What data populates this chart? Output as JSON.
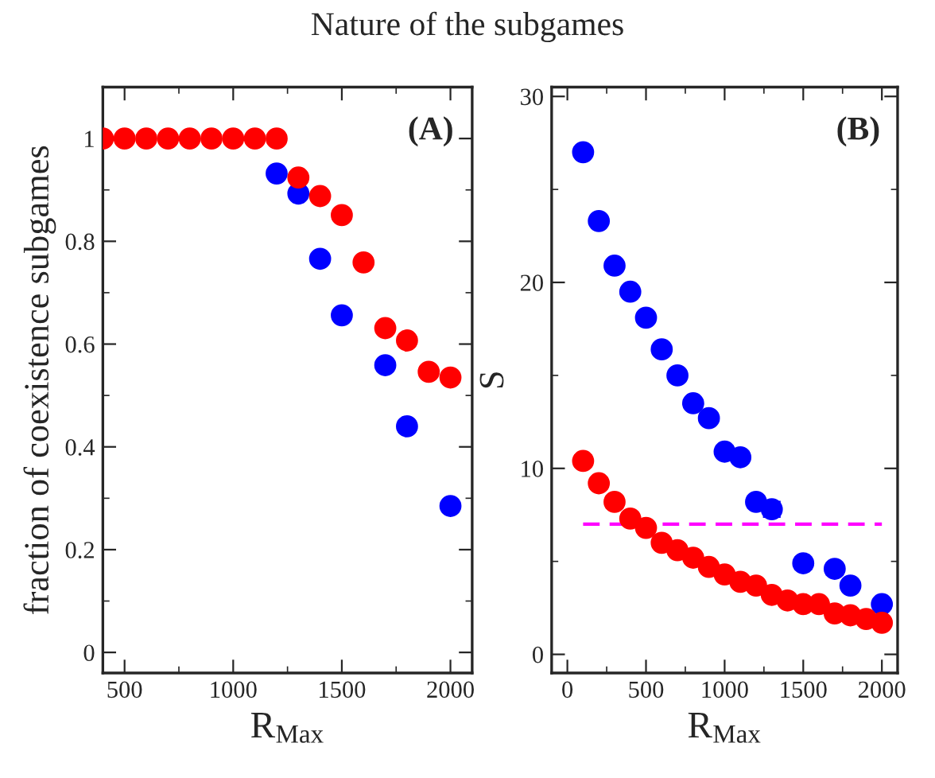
{
  "chart_data": [
    {
      "type": "scatter",
      "title": "Nature of the subgames",
      "xlabel": "R$_{Max}$",
      "ylabel": "fraction of coexistence subgames",
      "annotations": [
        "(A)"
      ],
      "xlim": [
        400,
        2100
      ],
      "ylim": [
        -0.04,
        1.1
      ],
      "xticks": [
        500,
        1000,
        1500,
        2000
      ],
      "yticks": [
        0,
        0.2,
        0.4,
        0.6,
        0.8,
        1
      ],
      "marker": "circle",
      "series": [
        {
          "color": "#0000ff",
          "x": [
            1200,
            1300,
            1400,
            1500,
            1700,
            1800,
            2000
          ],
          "values": [
            0.932,
            0.893,
            0.766,
            0.656,
            0.559,
            0.44,
            0.285
          ]
        },
        {
          "color": "#ff0000",
          "x": [
            400,
            500,
            600,
            700,
            800,
            900,
            1000,
            1100,
            1200,
            1300,
            1400,
            1500,
            1600,
            1700,
            1800,
            1900,
            2000
          ],
          "values": [
            1,
            1,
            1,
            1,
            1,
            1,
            1,
            1,
            1,
            0.924,
            0.888,
            0.851,
            0.759,
            0.631,
            0.607,
            0.546,
            0.535
          ]
        }
      ]
    },
    {
      "type": "scatter",
      "xlabel": "R$_{Max}$",
      "ylabel": "S",
      "annotations": [
        "(B)"
      ],
      "xlim": [
        -100,
        2100
      ],
      "ylim": [
        -1,
        30.5
      ],
      "xticks": [
        0,
        500,
        1000,
        1500,
        2000
      ],
      "yticks": [
        0,
        10,
        20,
        30
      ],
      "marker": "circle",
      "series": [
        {
          "color": "#0000ff",
          "x": [
            100,
            200,
            300,
            400,
            500,
            600,
            700,
            800,
            900,
            1000,
            1100,
            1200,
            1300,
            1500,
            1700,
            1800,
            2000
          ],
          "values": [
            27.0,
            23.3,
            20.9,
            19.5,
            18.1,
            16.4,
            15.0,
            13.5,
            12.7,
            10.9,
            10.6,
            8.2,
            7.8,
            4.9,
            4.6,
            3.7,
            2.7
          ],
          "errors": [
            null,
            null,
            null,
            null,
            null,
            null,
            null,
            null,
            null,
            0.3,
            0.3,
            0.3,
            0.4,
            0.3,
            0.3,
            null,
            null
          ]
        },
        {
          "color": "#ff0000",
          "x": [
            100,
            200,
            300,
            400,
            500,
            600,
            700,
            800,
            900,
            1000,
            1100,
            1200,
            1300,
            1400,
            1500,
            1600,
            1700,
            1800,
            1900,
            2000
          ],
          "values": [
            10.4,
            9.2,
            8.2,
            7.3,
            6.8,
            6.0,
            5.6,
            5.2,
            4.7,
            4.3,
            3.9,
            3.7,
            3.2,
            2.9,
            2.7,
            2.7,
            2.2,
            2.1,
            1.9,
            1.7
          ],
          "errors": [
            0.3,
            0.3,
            0.3,
            0.3,
            null,
            null,
            null,
            null,
            null,
            null,
            null,
            null,
            null,
            null,
            null,
            null,
            null,
            null,
            null,
            null
          ]
        },
        {
          "type": "line",
          "color": "#ff00ff",
          "line_style": "dashed",
          "marker": "none",
          "x": [
            100,
            2000
          ],
          "values": [
            7,
            7
          ]
        }
      ]
    }
  ]
}
